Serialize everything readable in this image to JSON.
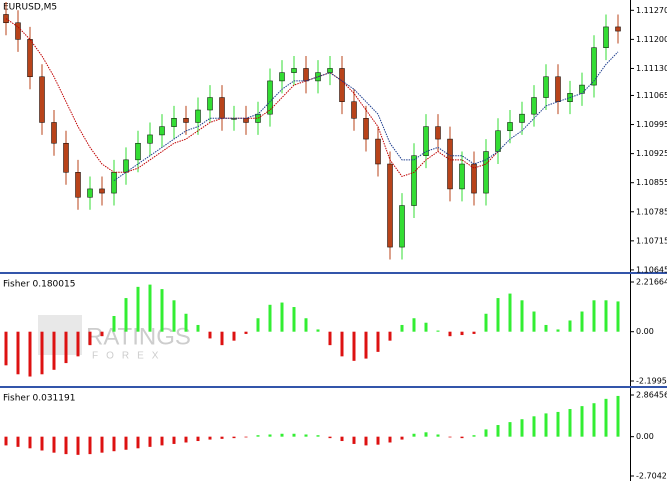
{
  "chart_data": [
    {
      "type": "candlestick",
      "title": "EURUSD,M5",
      "open": [
        1.1126,
        1.1124,
        1.112,
        1.1111,
        1.11,
        1.1095,
        1.1088,
        1.1082,
        1.1084,
        1.1083,
        1.1088,
        1.1091,
        1.1095,
        1.1097,
        1.1099,
        1.1101,
        1.11,
        1.1103,
        1.1106,
        1.1101,
        1.1101,
        1.11,
        1.1102,
        1.111,
        1.1112,
        1.1113,
        1.111,
        1.1112,
        1.1113,
        1.1105,
        1.1101,
        1.1096,
        1.109,
        1.107,
        1.108,
        1.1092,
        1.1099,
        1.1096,
        1.1084,
        1.109,
        1.1083,
        1.1093,
        1.1098,
        1.11,
        1.1102,
        1.1106,
        1.1111,
        1.1105,
        1.1107,
        1.1109,
        1.1118,
        1.1123
      ],
      "high": [
        1.1129,
        1.1127,
        1.1123,
        1.1114,
        1.1103,
        1.1098,
        1.1091,
        1.1087,
        1.1087,
        1.1091,
        1.1094,
        1.1098,
        1.11,
        1.1102,
        1.1104,
        1.1104,
        1.1106,
        1.1109,
        1.1109,
        1.1104,
        1.1104,
        1.1105,
        1.1113,
        1.1115,
        1.1116,
        1.1116,
        1.1115,
        1.1116,
        1.1116,
        1.1108,
        1.1104,
        1.1099,
        1.1093,
        1.1083,
        1.1095,
        1.1102,
        1.1102,
        1.1099,
        1.1093,
        1.1093,
        1.1096,
        1.1101,
        1.1103,
        1.1105,
        1.1109,
        1.1114,
        1.1114,
        1.111,
        1.1112,
        1.1121,
        1.1126,
        1.1126
      ],
      "low": [
        1.1121,
        1.1117,
        1.1108,
        1.1097,
        1.1092,
        1.1085,
        1.1079,
        1.1079,
        1.108,
        1.108,
        1.1085,
        1.1088,
        1.1092,
        1.1094,
        1.1096,
        1.1097,
        1.1097,
        1.11,
        1.1098,
        1.1098,
        1.1097,
        1.1097,
        1.1099,
        1.1107,
        1.1109,
        1.1107,
        1.1107,
        1.1109,
        1.1102,
        1.1098,
        1.1093,
        1.1087,
        1.1067,
        1.1067,
        1.1077,
        1.1089,
        1.1093,
        1.1081,
        1.1081,
        1.108,
        1.108,
        1.109,
        1.1095,
        1.1097,
        1.1099,
        1.1103,
        1.1102,
        1.1102,
        1.1104,
        1.1106,
        1.1115,
        1.1119
      ],
      "close": [
        1.1124,
        1.112,
        1.1111,
        1.11,
        1.1095,
        1.1088,
        1.1082,
        1.1084,
        1.1083,
        1.1088,
        1.1091,
        1.1095,
        1.1097,
        1.1099,
        1.1101,
        1.11,
        1.1103,
        1.1106,
        1.1101,
        1.1101,
        1.11,
        1.1102,
        1.111,
        1.1112,
        1.1113,
        1.111,
        1.1112,
        1.1113,
        1.1105,
        1.1101,
        1.1096,
        1.109,
        1.107,
        1.108,
        1.1092,
        1.1099,
        1.1096,
        1.1084,
        1.109,
        1.1083,
        1.1093,
        1.1098,
        1.11,
        1.1102,
        1.1106,
        1.1111,
        1.1105,
        1.1107,
        1.1109,
        1.1118,
        1.1123,
        1.1122
      ],
      "up_color": "#33dd33",
      "down_color": "#b8431a",
      "lines": [
        {
          "color": "#c00000",
          "values": [
            1.1125,
            1.1123,
            1.112,
            1.1116,
            1.1111,
            1.1105,
            1.1099,
            1.1094,
            1.109,
            1.1088,
            1.1088,
            1.1089,
            1.1091,
            1.1093,
            1.1095,
            1.1096,
            1.1098,
            1.11,
            1.1101,
            1.1101,
            1.1101,
            1.1101,
            1.1103,
            1.1106,
            1.1109,
            1.111,
            1.1111,
            1.1112,
            1.111,
            1.1107,
            1.1103,
            1.1099,
            1.1091,
            1.1087,
            1.1088,
            1.1091,
            1.1093,
            1.1091,
            1.1091,
            1.1089,
            1.109,
            1.1093,
            null,
            null,
            null,
            null,
            null,
            null,
            null,
            null,
            null,
            null
          ]
        },
        {
          "color": "#1f3f8f",
          "values": [
            null,
            null,
            null,
            null,
            null,
            null,
            null,
            null,
            null,
            1.1086,
            1.1088,
            1.109,
            1.1092,
            1.1094,
            1.1096,
            1.1098,
            1.1099,
            1.1101,
            1.1101,
            1.1101,
            1.1101,
            1.1102,
            1.1105,
            1.1108,
            1.111,
            1.111,
            1.1111,
            1.1112,
            1.111,
            1.1108,
            1.1105,
            1.1102,
            1.1095,
            1.1091,
            1.1091,
            1.1093,
            1.1094,
            1.1092,
            1.1092,
            1.109,
            1.1091,
            1.1093,
            1.1096,
            1.1098,
            1.1101,
            1.1104,
            1.1105,
            1.1106,
            1.1107,
            1.111,
            1.1114,
            1.1117
          ]
        }
      ],
      "ylim": [
        1.1064,
        1.1129
      ],
      "yticks": [
        {
          "value": 1.1127,
          "label": "1.11270"
        },
        {
          "value": 1.112,
          "label": "1.11200"
        },
        {
          "value": 1.1113,
          "label": "1.11130"
        },
        {
          "value": 1.11065,
          "label": "1.11065"
        },
        {
          "value": 1.10995,
          "label": "1.10995"
        },
        {
          "value": 1.10925,
          "label": "1.10925"
        },
        {
          "value": 1.10855,
          "label": "1.10855"
        },
        {
          "value": 1.10785,
          "label": "1.10785"
        },
        {
          "value": 1.10715,
          "label": "1.10715"
        },
        {
          "value": 1.10645,
          "label": "1.10645"
        }
      ]
    },
    {
      "type": "bar",
      "title": "Fisher 0.180015",
      "up_color": "#33ee33",
      "down_color": "#dd1111",
      "values": [
        -1.5,
        -1.9,
        -2.0,
        -1.9,
        -1.7,
        -1.4,
        -1.1,
        -0.6,
        -0.2,
        0.7,
        1.5,
        2.0,
        2.1,
        1.9,
        1.4,
        0.8,
        0.3,
        -0.3,
        -0.6,
        -0.4,
        -0.1,
        0.6,
        1.2,
        1.3,
        1.1,
        0.6,
        0.1,
        -0.6,
        -1.1,
        -1.3,
        -1.2,
        -0.9,
        -0.4,
        0.3,
        0.6,
        0.4,
        0.05,
        -0.2,
        -0.15,
        -0.1,
        0.8,
        1.5,
        1.7,
        1.4,
        0.9,
        0.3,
        0.1,
        0.5,
        0.9,
        1.4,
        1.4,
        1.35
      ],
      "ylim": [
        -2.199511,
        2.216641
      ],
      "yticks": [
        2.216641,
        {
          "value": 0,
          "label": "0.00"
        },
        -2.199511
      ]
    },
    {
      "type": "bar",
      "title": "Fisher 0.031191",
      "up_color": "#33ee33",
      "down_color": "#dd1111",
      "values": [
        -0.6,
        -0.7,
        -0.8,
        -0.95,
        -1.1,
        -1.2,
        -1.25,
        -1.2,
        -1.1,
        -1.0,
        -0.9,
        -0.8,
        -0.7,
        -0.6,
        -0.5,
        -0.4,
        -0.3,
        -0.2,
        -0.15,
        -0.1,
        -0.05,
        0.1,
        0.15,
        0.2,
        0.2,
        0.15,
        0.1,
        -0.1,
        -0.3,
        -0.5,
        -0.6,
        -0.55,
        -0.4,
        -0.2,
        0.2,
        0.3,
        0.15,
        -0.05,
        -0.1,
        0.1,
        0.5,
        0.8,
        1.0,
        1.2,
        1.4,
        1.6,
        1.7,
        1.9,
        2.1,
        2.3,
        2.6,
        2.8
      ],
      "ylim": [
        -2.704286,
        2.86456
      ],
      "yticks": [
        2.86456,
        {
          "value": 0,
          "label": "0.00"
        },
        -2.704286
      ]
    }
  ],
  "watermark": {
    "title": "RATINGS",
    "subtitle": "FOREX"
  }
}
